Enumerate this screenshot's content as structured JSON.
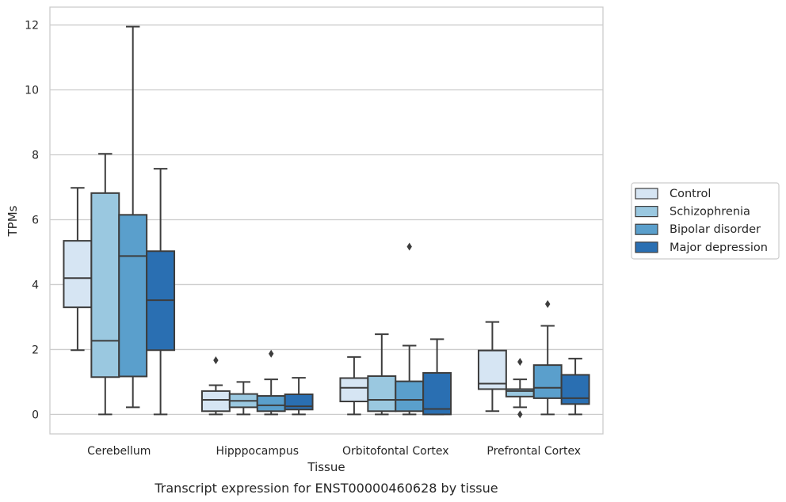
{
  "chart_data": {
    "type": "box",
    "title": "Transcript expression for ENST00000460628 by tissue",
    "xlabel": "Tissue",
    "ylabel": "TPMs",
    "ylim": [
      -0.6,
      12.55
    ],
    "yticks": [
      0,
      2,
      4,
      6,
      8,
      10,
      12
    ],
    "grid": "horizontal",
    "legend_position": "right",
    "categories": [
      "Cerebellum",
      "Hipppocampus",
      "Orbitofontal Cortex",
      "Prefrontal Cortex"
    ],
    "series": [
      {
        "name": "Control",
        "color": "#d6e5f3",
        "boxes": [
          {
            "whisker_low": 1.98,
            "q1": 3.3,
            "median": 4.2,
            "q3": 5.35,
            "whisker_high": 6.98,
            "outliers": []
          },
          {
            "whisker_low": 0.0,
            "q1": 0.1,
            "median": 0.45,
            "q3": 0.72,
            "whisker_high": 0.9,
            "outliers": [
              1.67
            ]
          },
          {
            "whisker_low": 0.0,
            "q1": 0.4,
            "median": 0.82,
            "q3": 1.12,
            "whisker_high": 1.77,
            "outliers": []
          },
          {
            "whisker_low": 0.1,
            "q1": 0.78,
            "median": 0.95,
            "q3": 1.97,
            "whisker_high": 2.85,
            "outliers": []
          }
        ]
      },
      {
        "name": "Schizophrenia",
        "color": "#9ac8e0",
        "boxes": [
          {
            "whisker_low": 0.0,
            "q1": 1.15,
            "median": 2.27,
            "q3": 6.82,
            "whisker_high": 8.03,
            "outliers": []
          },
          {
            "whisker_low": 0.0,
            "q1": 0.22,
            "median": 0.42,
            "q3": 0.63,
            "whisker_high": 1.0,
            "outliers": []
          },
          {
            "whisker_low": 0.0,
            "q1": 0.1,
            "median": 0.45,
            "q3": 1.18,
            "whisker_high": 2.47,
            "outliers": []
          },
          {
            "whisker_low": 0.22,
            "q1": 0.55,
            "median": 0.72,
            "q3": 0.78,
            "whisker_high": 1.08,
            "outliers": [
              1.62,
              0.0
            ]
          }
        ]
      },
      {
        "name": "Bipolar disorder",
        "color": "#5a9fcc",
        "boxes": [
          {
            "whisker_low": 0.22,
            "q1": 1.17,
            "median": 4.88,
            "q3": 6.15,
            "whisker_high": 11.95,
            "outliers": []
          },
          {
            "whisker_low": 0.0,
            "q1": 0.1,
            "median": 0.28,
            "q3": 0.57,
            "whisker_high": 1.08,
            "outliers": [
              1.87
            ]
          },
          {
            "whisker_low": 0.0,
            "q1": 0.1,
            "median": 0.45,
            "q3": 1.02,
            "whisker_high": 2.12,
            "outliers": [
              5.17
            ]
          },
          {
            "whisker_low": 0.0,
            "q1": 0.5,
            "median": 0.82,
            "q3": 1.52,
            "whisker_high": 2.73,
            "outliers": [
              3.4
            ]
          }
        ]
      },
      {
        "name": "Major depression",
        "color": "#2a6fb2",
        "boxes": [
          {
            "whisker_low": 0.0,
            "q1": 1.98,
            "median": 3.52,
            "q3": 5.03,
            "whisker_high": 7.57,
            "outliers": []
          },
          {
            "whisker_low": 0.0,
            "q1": 0.15,
            "median": 0.25,
            "q3": 0.62,
            "whisker_high": 1.13,
            "outliers": []
          },
          {
            "whisker_low": 0.0,
            "q1": 0.0,
            "median": 0.17,
            "q3": 1.28,
            "whisker_high": 2.32,
            "outliers": []
          },
          {
            "whisker_low": 0.0,
            "q1": 0.32,
            "median": 0.5,
            "q3": 1.22,
            "whisker_high": 1.72,
            "outliers": []
          }
        ]
      }
    ]
  }
}
